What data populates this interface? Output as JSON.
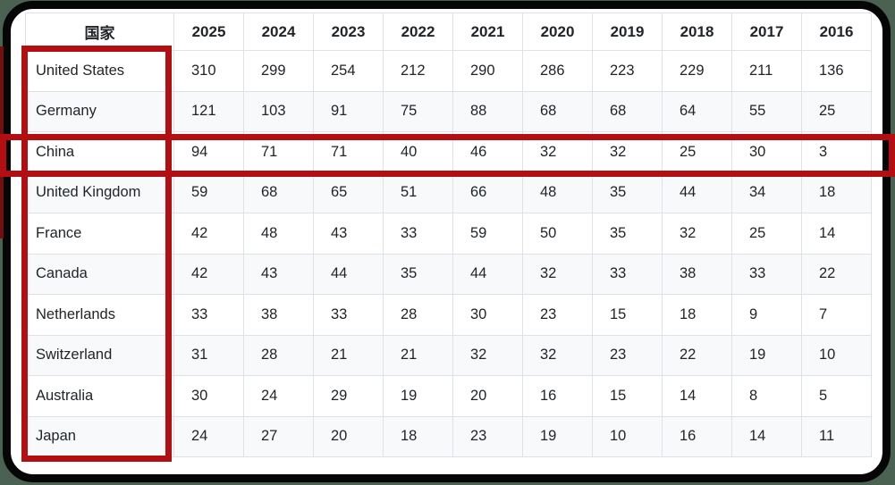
{
  "page": {
    "background_color": "#4b6253",
    "frame_border_color": "#060606"
  },
  "table": {
    "country_column_header": "国家",
    "year_columns": [
      "2025",
      "2024",
      "2023",
      "2022",
      "2021",
      "2020",
      "2019",
      "2018",
      "2017",
      "2016"
    ],
    "rows": [
      {
        "country": "United States",
        "values": [
          310,
          299,
          254,
          212,
          290,
          286,
          223,
          229,
          211,
          136
        ]
      },
      {
        "country": "Germany",
        "values": [
          121,
          103,
          91,
          75,
          88,
          68,
          68,
          64,
          55,
          25
        ]
      },
      {
        "country": "China",
        "values": [
          94,
          71,
          71,
          40,
          46,
          32,
          32,
          25,
          30,
          3
        ]
      },
      {
        "country": "United Kingdom",
        "values": [
          59,
          68,
          65,
          51,
          66,
          48,
          35,
          44,
          34,
          18
        ]
      },
      {
        "country": "France",
        "values": [
          42,
          48,
          43,
          33,
          59,
          50,
          35,
          32,
          25,
          14
        ]
      },
      {
        "country": "Canada",
        "values": [
          42,
          43,
          44,
          35,
          44,
          32,
          33,
          38,
          33,
          22
        ]
      },
      {
        "country": "Netherlands",
        "values": [
          33,
          38,
          33,
          28,
          30,
          23,
          15,
          18,
          9,
          7
        ]
      },
      {
        "country": "Switzerland",
        "values": [
          31,
          28,
          21,
          21,
          32,
          32,
          23,
          22,
          19,
          10
        ]
      },
      {
        "country": "Australia",
        "values": [
          30,
          24,
          29,
          19,
          20,
          16,
          15,
          14,
          8,
          5
        ]
      },
      {
        "country": "Japan",
        "values": [
          24,
          27,
          20,
          18,
          23,
          19,
          10,
          16,
          14,
          11
        ]
      }
    ],
    "style": {
      "striped_row_color": "#f8f9fa",
      "cell_border_color": "#dee2e6",
      "text_color": "#212529"
    }
  },
  "annotations": {
    "highlight_color": "#b30e12",
    "boxes": [
      {
        "name": "country-column-highlight",
        "target": "country name column (United States through Japan)"
      },
      {
        "name": "china-row-highlight",
        "target": "China data row, full width"
      }
    ]
  }
}
